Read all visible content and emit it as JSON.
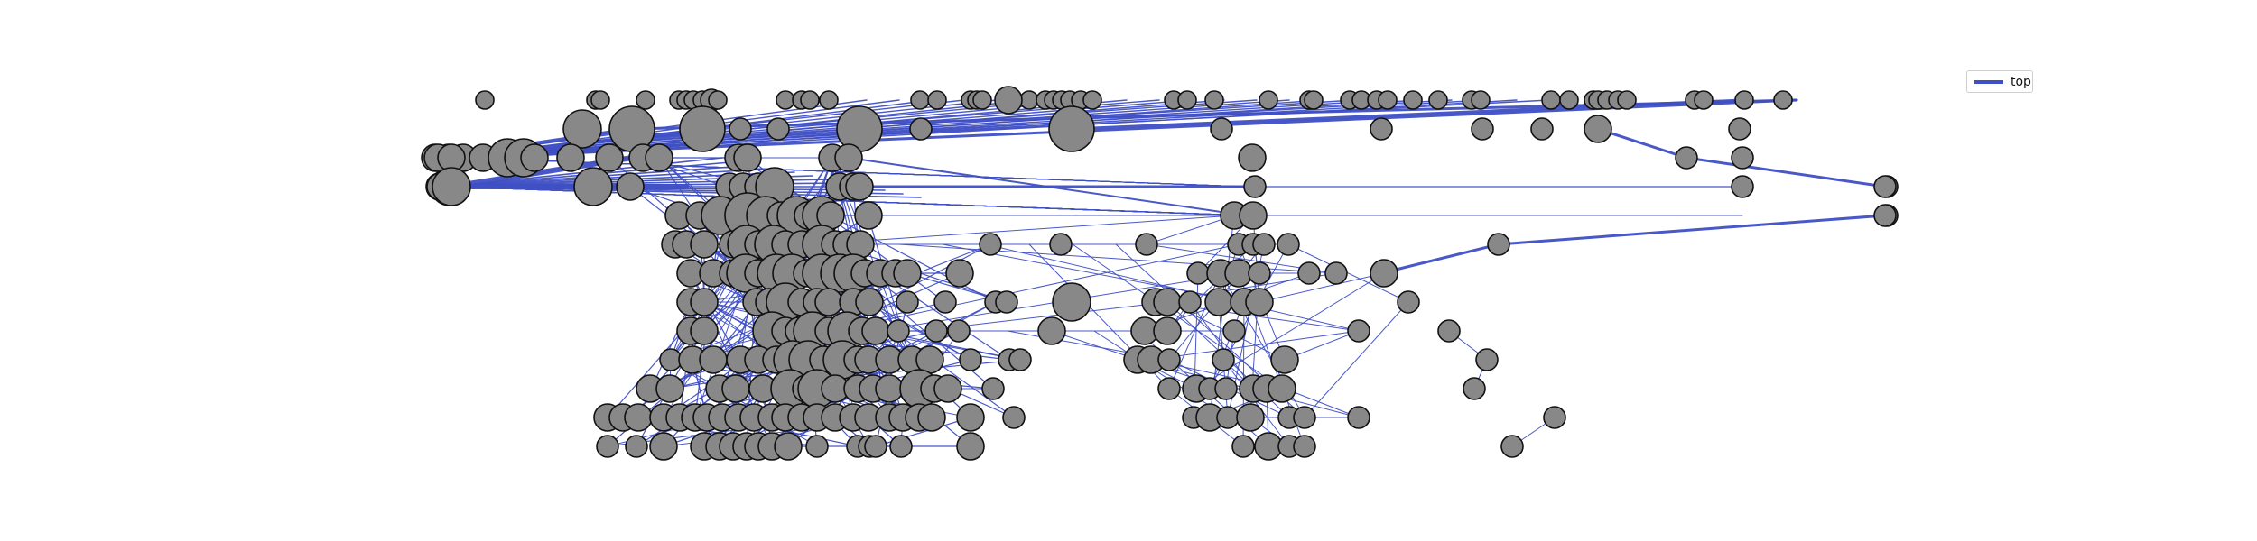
{
  "diagram": {
    "type": "network-graph",
    "edge_color": "#3f4fc4",
    "node_fill": "#888888",
    "node_stroke": "#111111",
    "background": "#ffffff"
  },
  "legend": {
    "label": "top",
    "line_color": "#3f4fc4"
  }
}
